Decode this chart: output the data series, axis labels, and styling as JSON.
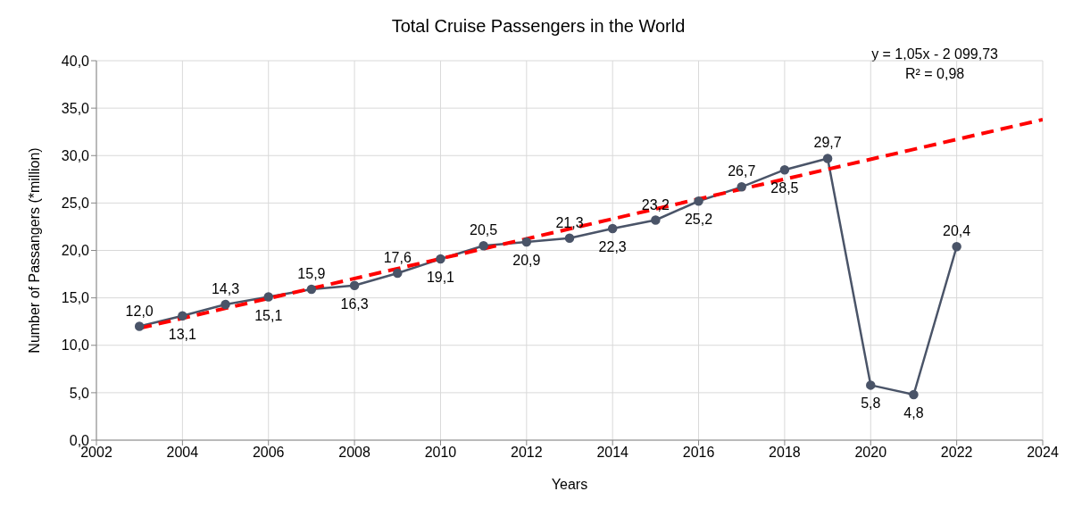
{
  "chart_data": {
    "type": "line",
    "title": "Total Cruise Passengers in the World",
    "xlabel": "Years",
    "ylabel": "Number of Passangers (*million)",
    "xlim": [
      2002,
      2024
    ],
    "xticks": [
      2002,
      2004,
      2006,
      2008,
      2010,
      2012,
      2014,
      2016,
      2018,
      2020,
      2022,
      2024
    ],
    "ylim": [
      0,
      40
    ],
    "yticks": [
      {
        "value": 0,
        "label": "0,0"
      },
      {
        "value": 5,
        "label": "5,0"
      },
      {
        "value": 10,
        "label": "10,0"
      },
      {
        "value": 15,
        "label": "15,0"
      },
      {
        "value": 20,
        "label": "20,0"
      },
      {
        "value": 25,
        "label": "25,0"
      },
      {
        "value": 30,
        "label": "30,0"
      },
      {
        "value": 35,
        "label": "35,0"
      },
      {
        "value": 40,
        "label": "40,0"
      }
    ],
    "grid": true,
    "series": [
      {
        "color": "#4a5468",
        "marker": "circle",
        "line_style": "solid",
        "x": [
          2003,
          2004,
          2005,
          2006,
          2007,
          2008,
          2009,
          2010,
          2011,
          2012,
          2013,
          2014,
          2015,
          2016,
          2017,
          2018,
          2019,
          2020,
          2021,
          2022
        ],
        "values": [
          12.0,
          13.1,
          14.3,
          15.1,
          15.9,
          16.3,
          17.6,
          19.1,
          20.5,
          20.9,
          21.3,
          22.3,
          23.2,
          25.2,
          26.7,
          28.5,
          29.7,
          5.8,
          4.8,
          20.4
        ],
        "value_labels": [
          "12,0",
          "13,1",
          "14,3",
          "15,1",
          "15,9",
          "16,3",
          "17,6",
          "19,1",
          "20,5",
          "20,9",
          "21,3",
          "22,3",
          "23,2",
          "25,2",
          "26,7",
          "28,5",
          "29,7",
          "5,8",
          "4,8",
          "20,4"
        ]
      },
      {
        "type": "line",
        "color": "#ff0000",
        "marker": "none",
        "line_style": "dashed",
        "x": [
          2003,
          2024
        ],
        "values": [
          11.8,
          33.8
        ]
      }
    ],
    "annotations": [
      "y = 1,05x - 2 099,73",
      "R² = 0,98"
    ]
  }
}
